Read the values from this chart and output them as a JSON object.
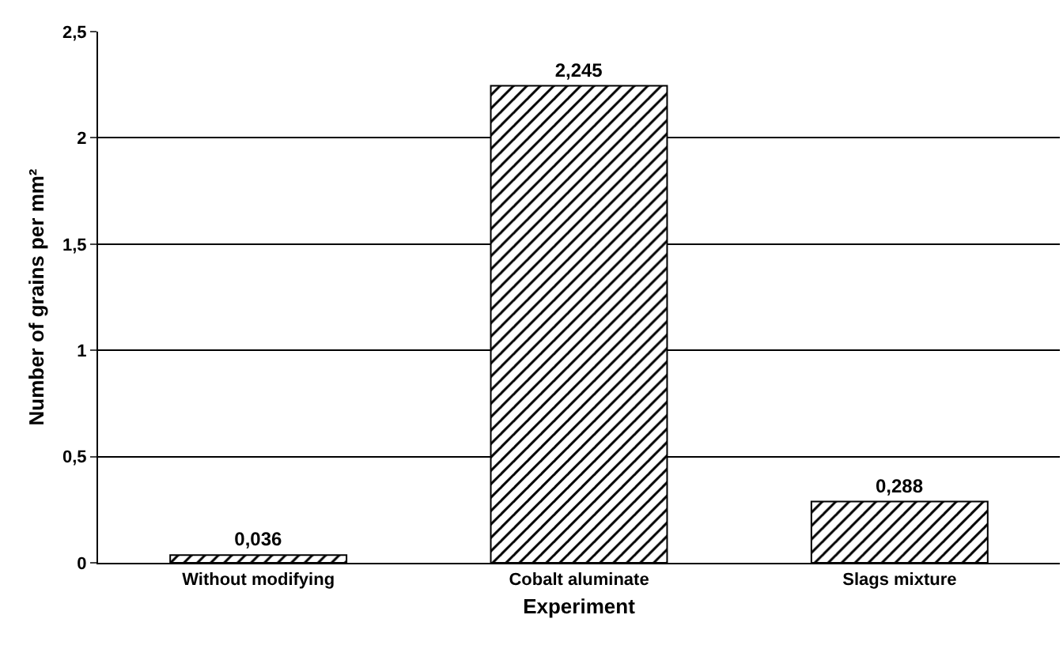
{
  "chart_data": {
    "type": "bar",
    "xlabel": "Experiment",
    "ylabel": "Number of grains per mm²",
    "categories": [
      "Without modifying",
      "Cobalt aluminate",
      "Slags mixture"
    ],
    "values": [
      0.036,
      2.245,
      0.288
    ],
    "value_labels": [
      "0,036",
      "2,245",
      "0,288"
    ],
    "color": "#000000",
    "ylim": [
      0,
      2.5
    ],
    "yticks": [
      0,
      {
        "value": 0.5,
        "label": "0,5"
      },
      1,
      {
        "value": 1.5,
        "label": "1,5"
      },
      2,
      {
        "value": 2.5,
        "label": "2,5"
      }
    ],
    "grid": "y"
  }
}
